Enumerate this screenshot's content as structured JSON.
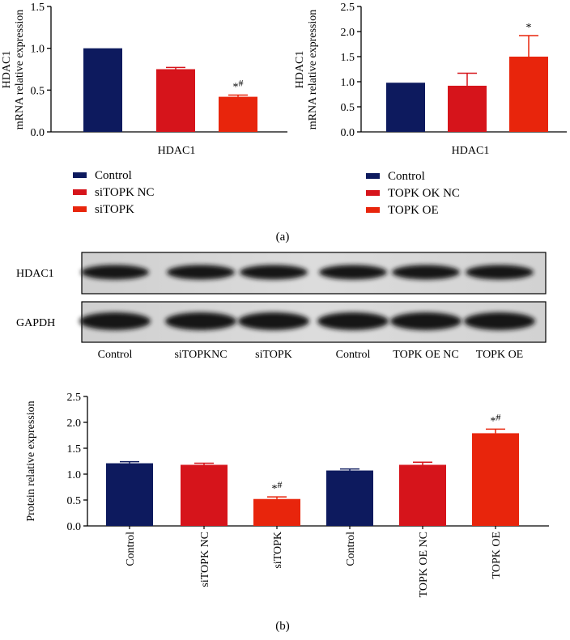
{
  "colors": {
    "navy": "#0d1a5e",
    "red": "#d6141b",
    "orange_red": "#e8250c",
    "axis": "#000000"
  },
  "panel_labels": {
    "a": "(a)",
    "b": "(b)"
  },
  "chart_data": [
    {
      "type": "bar",
      "id": "chart-a-left",
      "ylabel": [
        "HDAC1",
        "mRNA relative expression"
      ],
      "xlabel": "HDAC1",
      "ylim": [
        0,
        1.5
      ],
      "yticks": [
        "0.0",
        "0.5",
        "1.0",
        "1.5"
      ],
      "series": [
        {
          "name": "Control",
          "value": 1.0,
          "error": 0.0,
          "color": "#0d1a5e",
          "annotation": ""
        },
        {
          "name": "siTOPK NC",
          "value": 0.75,
          "error": 0.02,
          "color": "#d6141b",
          "annotation": ""
        },
        {
          "name": "siTOPK",
          "value": 0.42,
          "error": 0.02,
          "color": "#e8250c",
          "annotation": "*#"
        }
      ]
    },
    {
      "type": "bar",
      "id": "chart-a-right",
      "ylabel": [
        "HDAC1",
        "mRNA relative expression"
      ],
      "xlabel": "HDAC1",
      "ylim": [
        0,
        2.5
      ],
      "yticks": [
        "0.0",
        "0.5",
        "1.0",
        "1.5",
        "2.0",
        "2.5"
      ],
      "series": [
        {
          "name": "Control",
          "value": 0.98,
          "error": 0.0,
          "color": "#0d1a5e",
          "annotation": ""
        },
        {
          "name": "TOPK OK NC",
          "value": 0.92,
          "error": 0.25,
          "color": "#d6141b",
          "annotation": ""
        },
        {
          "name": "TOPK OE",
          "value": 1.5,
          "error": 0.42,
          "color": "#e8250c",
          "annotation": "*"
        }
      ]
    },
    {
      "type": "bar",
      "id": "chart-b",
      "ylabel": "Protein relative expression",
      "ylim": [
        0,
        2.5
      ],
      "yticks": [
        "0.0",
        "0.5",
        "1.0",
        "1.5",
        "2.0",
        "2.5"
      ],
      "categories": [
        "Control",
        "siTOPK NC",
        "siTOPK",
        "Control",
        "TOPK OE NC",
        "TOPK OE"
      ],
      "values": [
        1.21,
        1.18,
        0.52,
        1.07,
        1.18,
        1.79
      ],
      "errors": [
        0.03,
        0.03,
        0.04,
        0.03,
        0.05,
        0.08
      ],
      "colors": [
        "#0d1a5e",
        "#d6141b",
        "#e8250c",
        "#0d1a5e",
        "#d6141b",
        "#e8250c"
      ],
      "annotations": [
        "",
        "",
        "*#",
        "",
        "",
        "*#"
      ]
    }
  ],
  "blot": {
    "rows": [
      "HDAC1",
      "GAPDH"
    ],
    "lanes": [
      "Control",
      "siTOPKNC",
      "siTOPK",
      "Control",
      "TOPK OE NC",
      "TOPK OE"
    ]
  }
}
